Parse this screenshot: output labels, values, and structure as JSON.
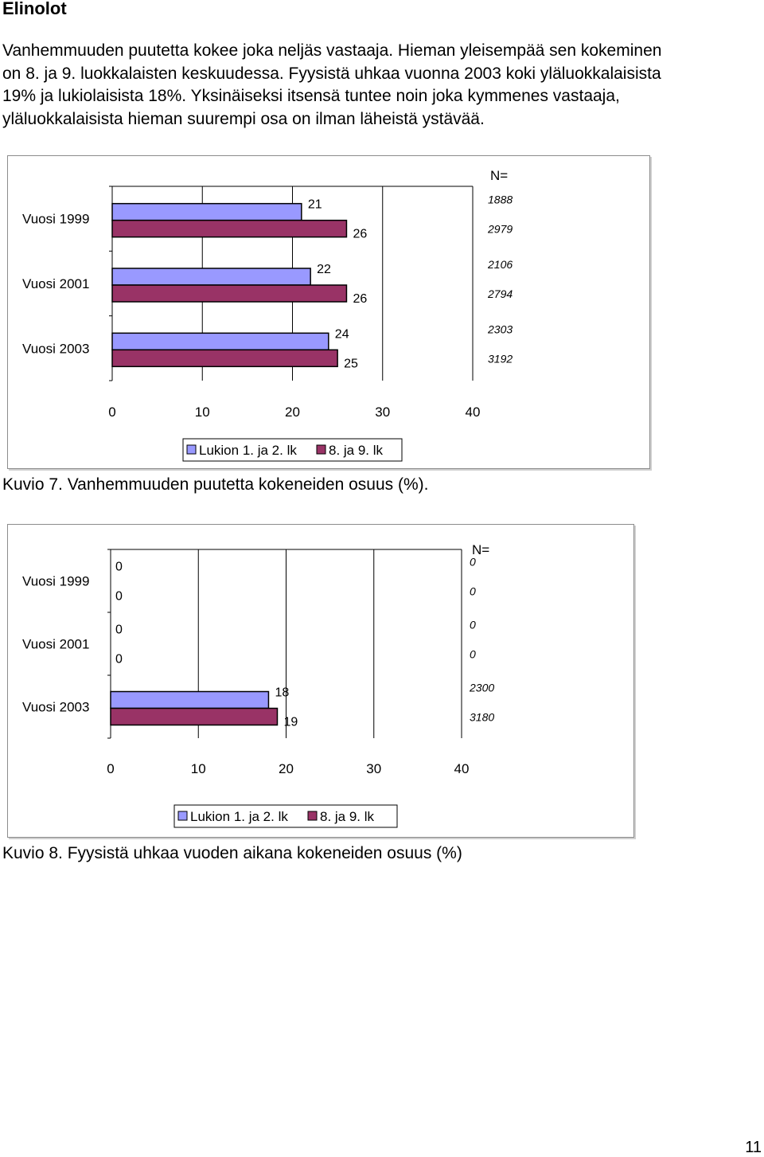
{
  "heading": "Elinolot",
  "paragraph_lines": [
    "Vanhemmuuden puutetta kokee joka neljäs vastaaja. Hieman yleisempää  sen kokeminen",
    "on 8. ja 9. luokkalaisten keskuudessa. Fyysistä uhkaa vuonna 2003 koki yläluokkalaisista",
    "19% ja lukiolaisista 18%. Yksinäiseksi itsensä tuntee noin joka kymmenes vastaaja,",
    "yläluokkalaisista hieman suurempi osa on ilman läheistä ystävää."
  ],
  "colors": {
    "series1": "#9999ff",
    "series2": "#993366",
    "frame": "#8c8c8c",
    "grid": "#000000"
  },
  "chart_data": [
    {
      "type": "bar",
      "orientation": "horizontal",
      "categories": [
        "Vuosi 1999",
        "Vuosi 2001",
        "Vuosi 2003"
      ],
      "series": [
        {
          "name": "Lukion 1. ja 2. lk",
          "values": [
            21,
            22,
            24
          ],
          "n": [
            "1888",
            "2106",
            "2303"
          ]
        },
        {
          "name": "8. ja 9. lk",
          "values": [
            26,
            26,
            25
          ],
          "n": [
            "2979",
            "2794",
            "3192"
          ]
        }
      ],
      "n_label": "N=",
      "xticks": [
        0,
        10,
        20,
        30,
        40
      ],
      "xlim": [
        0,
        40
      ],
      "grid": true,
      "legend": "bottom",
      "caption": "Kuvio 7. Vanhemmuuden puutetta kokeneiden osuus (%)."
    },
    {
      "type": "bar",
      "orientation": "horizontal",
      "categories": [
        "Vuosi 1999",
        "Vuosi 2001",
        "Vuosi 2003"
      ],
      "series": [
        {
          "name": "Lukion 1. ja 2. lk",
          "values": [
            0,
            0,
            18
          ],
          "n": [
            "0",
            "0",
            "2300"
          ]
        },
        {
          "name": "8. ja 9. lk",
          "values": [
            0,
            0,
            19
          ],
          "n": [
            "0",
            "0",
            "3180"
          ]
        }
      ],
      "n_label": "N=",
      "xticks": [
        0,
        10,
        20,
        30,
        40
      ],
      "xlim": [
        0,
        40
      ],
      "grid": true,
      "legend": "bottom",
      "caption": "Kuvio 8. Fyysistä uhkaa vuoden aikana kokeneiden osuus (%)"
    }
  ],
  "page_number": "11"
}
